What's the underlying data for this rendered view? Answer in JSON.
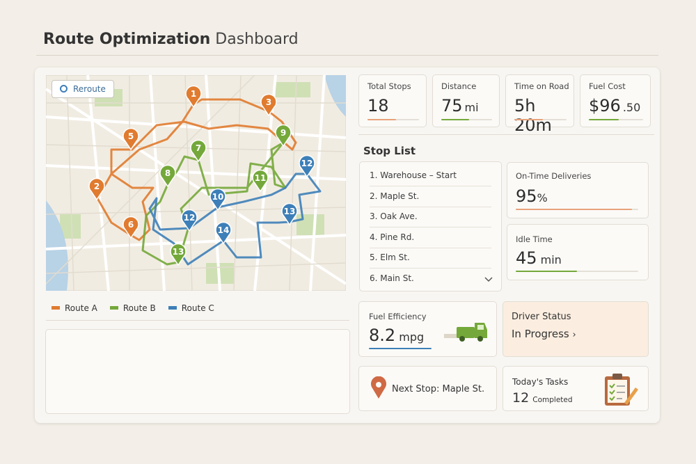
{
  "header": {
    "title": "Route Optimization",
    "subtitle": "Dashboard"
  },
  "map": {
    "button": "Reroute",
    "routes": [
      {
        "name": "Route A",
        "color": "#e07b2f",
        "stops": [
          "1",
          "3",
          "5",
          "2",
          "6"
        ]
      },
      {
        "name": "Route B",
        "color": "#74a83a",
        "stops": [
          "9",
          "7",
          "8",
          "11",
          "13"
        ]
      },
      {
        "name": "Route C",
        "color": "#3d7fb8",
        "stops": [
          "12",
          "10",
          "12",
          "13",
          "14"
        ]
      }
    ]
  },
  "kpis": [
    {
      "label": "Total Stops",
      "value": "18"
    },
    {
      "label": "Distance",
      "value": "75",
      "unit": "mi"
    },
    {
      "label": "Time on Road",
      "value": "5h 20m"
    },
    {
      "label": "Fuel Cost",
      "value": "$96",
      "unit": ".50"
    }
  ],
  "stop_list": {
    "title": "Stop List",
    "items": [
      "1. Warehouse – Start",
      "2. Maple St.",
      "3. Oak Ave.",
      "4. Pine Rd.",
      "5. Elm St.",
      "6. Main St."
    ]
  },
  "on_time": {
    "label": "On-Time Deliveries",
    "value": 95,
    "unit": "%"
  },
  "idle": {
    "label": "Idle Time",
    "value": "45",
    "unit": "min"
  },
  "fuel": {
    "label": "Fuel Efficiency",
    "value": "8.2",
    "unit": "mpg"
  },
  "driver": {
    "label": "Driver Status",
    "status": "In Progress"
  },
  "next_stop": {
    "text": "Next Stop: Maple St."
  },
  "tasks": {
    "label": "Today's Tasks",
    "count": "12",
    "note": "Completed"
  }
}
